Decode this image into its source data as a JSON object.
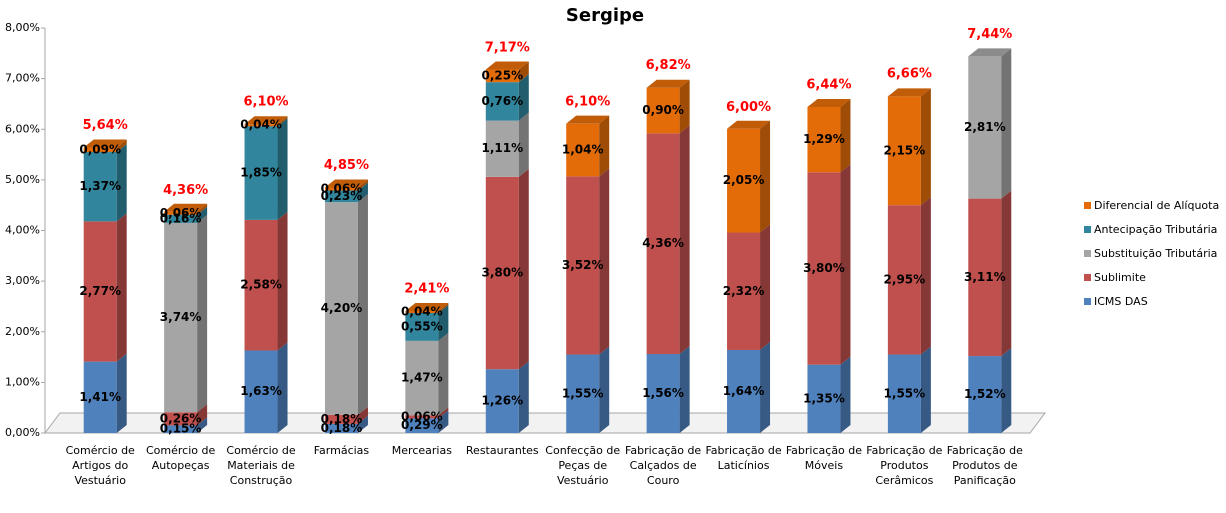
{
  "chart_data": {
    "type": "stacked-bar-3d",
    "title": "Sergipe",
    "categories": [
      "Comércio de Artigos do Vestuário",
      "Comércio de Autopeças",
      "Comércio de Materiais de Construção",
      "Farmácias",
      "Mercearias",
      "Restaurantes",
      "Confecção de Peças de Vestuário",
      "Fabricação de Calçados de Couro",
      "Fabricação de Laticínios",
      "Fabricação de Móveis",
      "Fabricação de Produtos Cerâmicos",
      "Fabricação de Produtos de Panificação"
    ],
    "series": [
      {
        "name": "ICMS DAS",
        "color": "#4f81bd",
        "values": [
          1.41,
          0.15,
          1.63,
          0.18,
          0.29,
          1.26,
          1.55,
          1.56,
          1.64,
          1.35,
          1.55,
          1.52
        ],
        "value_labels": [
          "1,41%",
          "0,15%",
          "1,63%",
          "0,18%",
          "0,29%",
          "1,26%",
          "1,55%",
          "1,56%",
          "1,64%",
          "1,35%",
          "1,55%",
          "1,52%"
        ]
      },
      {
        "name": "Sublimite",
        "color": "#c0504d",
        "values": [
          2.77,
          0.26,
          2.58,
          0.18,
          0.06,
          3.8,
          3.52,
          4.36,
          2.32,
          3.8,
          2.95,
          3.11
        ],
        "value_labels": [
          "2,77%",
          "0,26%",
          "2,58%",
          "0,18%",
          "0,06%",
          "3,80%",
          "3,52%",
          "4,36%",
          "2,32%",
          "3,80%",
          "2,95%",
          "3,11%"
        ]
      },
      {
        "name": "Substituição Tributária",
        "color": "#a5a5a5",
        "values": [
          null,
          3.74,
          null,
          4.2,
          1.47,
          1.11,
          null,
          null,
          null,
          null,
          null,
          2.81
        ],
        "value_labels": [
          null,
          "3,74%",
          null,
          "4,20%",
          "1,47%",
          "1,11%",
          null,
          null,
          null,
          null,
          null,
          "2,81%"
        ]
      },
      {
        "name": "Antecipação Tributária",
        "color": "#31859c",
        "values": [
          1.37,
          0.16,
          1.85,
          0.23,
          0.55,
          0.76,
          null,
          null,
          null,
          null,
          null,
          null
        ],
        "value_labels": [
          "1,37%",
          "0,16%",
          "1,85%",
          "0,23%",
          "0,55%",
          "0,76%",
          null,
          null,
          null,
          null,
          null,
          null
        ]
      },
      {
        "name": "Diferencial de Alíquota",
        "color": "#e36c09",
        "values": [
          0.09,
          0.06,
          0.04,
          0.06,
          0.04,
          0.25,
          1.04,
          0.9,
          2.05,
          1.29,
          2.15,
          null
        ],
        "value_labels": [
          "0,09%",
          "0,06%",
          "0,04%",
          "0,06%",
          "0,04%",
          "0,25%",
          "1,04%",
          "0,90%",
          "2,05%",
          "1,29%",
          "2,15%",
          null
        ]
      }
    ],
    "totals": [
      5.64,
      4.36,
      6.1,
      4.85,
      2.41,
      7.17,
      6.1,
      6.82,
      6.0,
      6.44,
      6.66,
      7.44
    ],
    "total_labels": [
      "5,64%",
      "4,36%",
      "6,10%",
      "4,85%",
      "2,41%",
      "7,17%",
      "6,10%",
      "6,82%",
      "6,00%",
      "6,44%",
      "6,66%",
      "7,44%"
    ],
    "ylim": [
      0,
      8
    ],
    "yticks": [
      {
        "value": 0,
        "label": "0,00%"
      },
      {
        "value": 1,
        "label": "1,00%"
      },
      {
        "value": 2,
        "label": "2,00%"
      },
      {
        "value": 3,
        "label": "3,00%"
      },
      {
        "value": 4,
        "label": "4,00%"
      },
      {
        "value": 5,
        "label": "5,00%"
      },
      {
        "value": 6,
        "label": "6,00%"
      },
      {
        "value": 7,
        "label": "7,00%"
      },
      {
        "value": 8,
        "label": "8,00%"
      }
    ],
    "legend": "right"
  }
}
